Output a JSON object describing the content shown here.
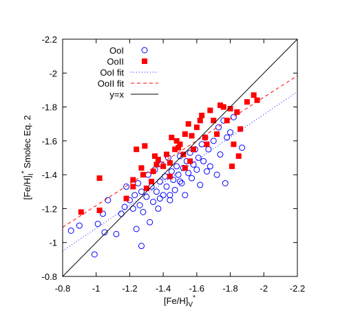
{
  "chart_data": {
    "type": "scatter",
    "xlabel": {
      "main": "[Fe/H]",
      "sub": "V",
      "sup": "*"
    },
    "ylabel": {
      "main": "[Fe/H]",
      "sub": "I",
      "sup": "*",
      "rest": " Smolec Eq. 2"
    },
    "xlim": [
      -0.8,
      -2.2
    ],
    "ylim": [
      -0.8,
      -2.2
    ],
    "xticks": [
      -0.8,
      -1,
      -1.2,
      -1.4,
      -1.6,
      -1.8,
      -2,
      -2.2
    ],
    "yticks": [
      -0.8,
      -1,
      -1.2,
      -1.4,
      -1.6,
      -1.8,
      -2,
      -2.2
    ],
    "legend": "top-left",
    "series": [
      {
        "name": "OoI",
        "color": "#0000ff",
        "mode": "markers",
        "marker": "circle",
        "x": [
          -0.85,
          -0.9,
          -0.99,
          -1.01,
          -1.04,
          -1.05,
          -1.07,
          -1.12,
          -1.15,
          -1.17,
          -1.18,
          -1.2,
          -1.22,
          -1.23,
          -1.24,
          -1.25,
          -1.26,
          -1.27,
          -1.27,
          -1.28,
          -1.3,
          -1.31,
          -1.32,
          -1.33,
          -1.34,
          -1.35,
          -1.36,
          -1.37,
          -1.38,
          -1.39,
          -1.4,
          -1.41,
          -1.42,
          -1.43,
          -1.44,
          -1.45,
          -1.46,
          -1.47,
          -1.48,
          -1.49,
          -1.5,
          -1.51,
          -1.52,
          -1.53,
          -1.54,
          -1.55,
          -1.56,
          -1.57,
          -1.58,
          -1.59,
          -1.6,
          -1.61,
          -1.62,
          -1.63,
          -1.64,
          -1.65,
          -1.66,
          -1.67,
          -1.68,
          -1.7,
          -1.72,
          -1.73,
          -1.74,
          -1.76,
          -1.77,
          -1.78,
          -1.8,
          -1.82,
          -1.87,
          -1.44,
          -1.38,
          -1.5
        ],
        "values": [
          -1.07,
          -1.1,
          -0.93,
          -1.11,
          -1.17,
          -1.06,
          -1.25,
          -1.05,
          -1.17,
          -1.21,
          -1.33,
          -1.25,
          -1.2,
          -1.28,
          -1.08,
          -1.35,
          -1.22,
          -0.98,
          -1.3,
          -1.18,
          -1.27,
          -1.4,
          -1.12,
          -1.33,
          -1.24,
          -1.43,
          -1.3,
          -1.2,
          -1.36,
          -1.46,
          -1.28,
          -1.39,
          -1.33,
          -1.5,
          -1.25,
          -1.42,
          -1.37,
          -1.31,
          -1.45,
          -1.4,
          -1.51,
          -1.35,
          -1.44,
          -1.28,
          -1.48,
          -1.41,
          -1.53,
          -1.38,
          -1.46,
          -1.55,
          -1.43,
          -1.5,
          -1.34,
          -1.58,
          -1.48,
          -1.62,
          -1.42,
          -1.55,
          -1.45,
          -1.6,
          -1.4,
          -1.68,
          -1.52,
          -1.72,
          -1.35,
          -1.62,
          -1.65,
          -1.74,
          -1.56,
          -1.28,
          -1.26,
          -1.36
        ]
      },
      {
        "name": "OoII",
        "color": "#ff0000",
        "mode": "markers",
        "marker": "square",
        "x": [
          -0.91,
          -1.02,
          -1.02,
          -1.18,
          -1.22,
          -1.22,
          -1.24,
          -1.27,
          -1.29,
          -1.28,
          -1.3,
          -1.33,
          -1.34,
          -1.36,
          -1.37,
          -1.4,
          -1.42,
          -1.44,
          -1.45,
          -1.47,
          -1.48,
          -1.49,
          -1.5,
          -1.52,
          -1.53,
          -1.55,
          -1.56,
          -1.57,
          -1.58,
          -1.6,
          -1.62,
          -1.63,
          -1.65,
          -1.66,
          -1.68,
          -1.7,
          -1.72,
          -1.74,
          -1.76,
          -1.78,
          -1.8,
          -1.81,
          -1.82,
          -1.84,
          -1.85,
          -1.86,
          -1.9,
          -1.94,
          -1.96,
          -1.53,
          -1.44,
          -1.35
        ],
        "values": [
          -1.18,
          -1.38,
          -1.19,
          -1.26,
          -1.33,
          -1.37,
          -1.55,
          -1.44,
          -1.57,
          -1.4,
          -1.32,
          -1.36,
          -1.42,
          -1.46,
          -1.49,
          -1.45,
          -1.52,
          -1.47,
          -1.62,
          -1.55,
          -1.6,
          -1.56,
          -1.58,
          -1.52,
          -1.64,
          -1.7,
          -1.48,
          -1.63,
          -1.55,
          -1.68,
          -1.72,
          -1.75,
          -1.62,
          -1.58,
          -1.78,
          -1.72,
          -1.64,
          -1.81,
          -1.8,
          -1.72,
          -1.79,
          -1.45,
          -1.58,
          -1.77,
          -1.51,
          -1.67,
          -1.83,
          -1.87,
          -1.84,
          -1.44,
          -1.39,
          -1.51
        ]
      },
      {
        "name": "OoI fit",
        "color": "#0000ff",
        "mode": "line",
        "dash": "1,3",
        "x": [
          -0.8,
          -2.2
        ],
        "values": [
          -0.95,
          -1.89
        ]
      },
      {
        "name": "OoII fit",
        "color": "#ff0000",
        "mode": "line",
        "dash": "5,4",
        "x": [
          -0.8,
          -2.2
        ],
        "values": [
          -1.09,
          -1.985
        ]
      },
      {
        "name": "y=x",
        "color": "#000000",
        "mode": "line",
        "dash": "none",
        "x": [
          -0.8,
          -2.2
        ],
        "values": [
          -0.8,
          -2.2
        ]
      }
    ]
  }
}
